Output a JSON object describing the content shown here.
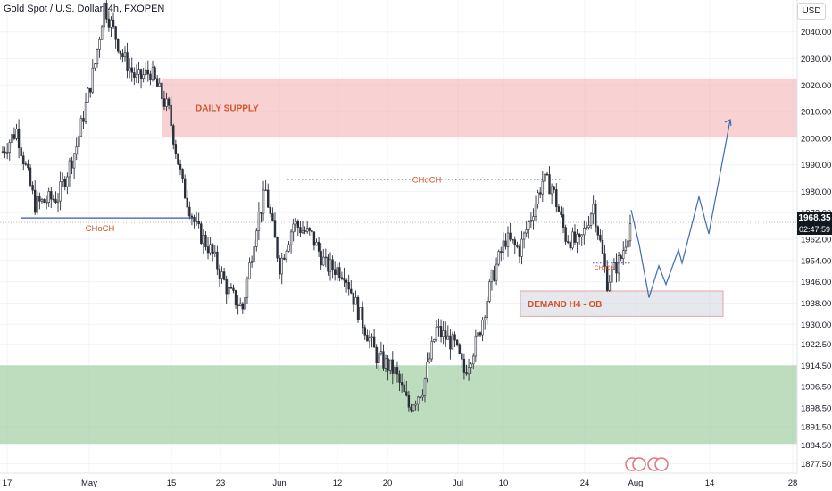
{
  "header": {
    "title": "Gold Spot / U.S. Dollar, 4h, FXOPEN",
    "currency": "USD"
  },
  "price_tag": {
    "price": "1968.35",
    "countdown": "02:47:59"
  },
  "chart_data": {
    "type": "candlestick",
    "title": "Gold Spot / U.S. Dollar, 4h, FXOPEN",
    "y_unit": "USD",
    "ylim": [
      1874,
      2052
    ],
    "y_ticks": [
      "2040.00",
      "2030.00",
      "2020.00",
      "2010.00",
      "2000.00",
      "1990.00",
      "1980.00",
      "1972.00",
      "1962.00",
      "1954.00",
      "1946.00",
      "1938.00",
      "1930.00",
      "1922.50",
      "1914.50",
      "1906.50",
      "1898.50",
      "1891.50",
      "1884.50",
      "1877.50"
    ],
    "x_ticks": [
      "17",
      "May",
      "15",
      "23",
      "Jun",
      "12",
      "20",
      "Jul",
      "10",
      "24",
      "Aug",
      "14",
      "28"
    ],
    "last_price": 1968.35,
    "grid": true,
    "price_path": [
      {
        "t": 0,
        "p": 1995
      },
      {
        "t": 6,
        "p": 2003
      },
      {
        "t": 14,
        "p": 1975
      },
      {
        "t": 24,
        "p": 1978
      },
      {
        "t": 32,
        "p": 1997
      },
      {
        "t": 40,
        "p": 2028
      },
      {
        "t": 44,
        "p": 2050
      },
      {
        "t": 52,
        "p": 2031
      },
      {
        "t": 58,
        "p": 2022
      },
      {
        "t": 64,
        "p": 2025
      },
      {
        "t": 72,
        "p": 2010
      },
      {
        "t": 78,
        "p": 1982
      },
      {
        "t": 84,
        "p": 1966
      },
      {
        "t": 90,
        "p": 1958
      },
      {
        "t": 98,
        "p": 1942
      },
      {
        "t": 104,
        "p": 1936
      },
      {
        "t": 110,
        "p": 1968
      },
      {
        "t": 114,
        "p": 1980
      },
      {
        "t": 120,
        "p": 1952
      },
      {
        "t": 126,
        "p": 1968
      },
      {
        "t": 134,
        "p": 1963
      },
      {
        "t": 140,
        "p": 1952
      },
      {
        "t": 148,
        "p": 1950
      },
      {
        "t": 154,
        "p": 1935
      },
      {
        "t": 162,
        "p": 1918
      },
      {
        "t": 170,
        "p": 1912
      },
      {
        "t": 176,
        "p": 1899
      },
      {
        "t": 182,
        "p": 1906
      },
      {
        "t": 188,
        "p": 1928
      },
      {
        "t": 196,
        "p": 1922
      },
      {
        "t": 200,
        "p": 1912
      },
      {
        "t": 206,
        "p": 1925
      },
      {
        "t": 212,
        "p": 1947
      },
      {
        "t": 218,
        "p": 1962
      },
      {
        "t": 224,
        "p": 1958
      },
      {
        "t": 228,
        "p": 1968
      },
      {
        "t": 234,
        "p": 1984
      },
      {
        "t": 238,
        "p": 1982
      },
      {
        "t": 244,
        "p": 1963
      },
      {
        "t": 250,
        "p": 1960
      },
      {
        "t": 256,
        "p": 1975
      },
      {
        "t": 262,
        "p": 1946
      },
      {
        "t": 268,
        "p": 1955
      },
      {
        "t": 272,
        "p": 1968
      }
    ],
    "zones": [
      {
        "label": "DAILY SUPPLY",
        "y_from": 2000.5,
        "y_to": 2022.5,
        "color": "#f2a5a5"
      },
      {
        "label": "",
        "y_from": 1885,
        "y_to": 1914.5,
        "color": "#9bc99b"
      },
      {
        "label": "DEMAND H4 - OB",
        "y_from": 1933,
        "y_to": 1942.5,
        "color": "#cfd2db"
      }
    ],
    "annotations": [
      {
        "label": "CHoCH",
        "y": 1970,
        "style": "solid"
      },
      {
        "label": "CHoCH",
        "y": 1984.5,
        "style": "dotted"
      },
      {
        "label": "CHoCH",
        "y": 1953,
        "style": "dotted"
      }
    ],
    "projection": [
      1973,
      1960,
      1940,
      1952,
      1945,
      1958,
      1953,
      1978,
      1964,
      2007
    ]
  }
}
